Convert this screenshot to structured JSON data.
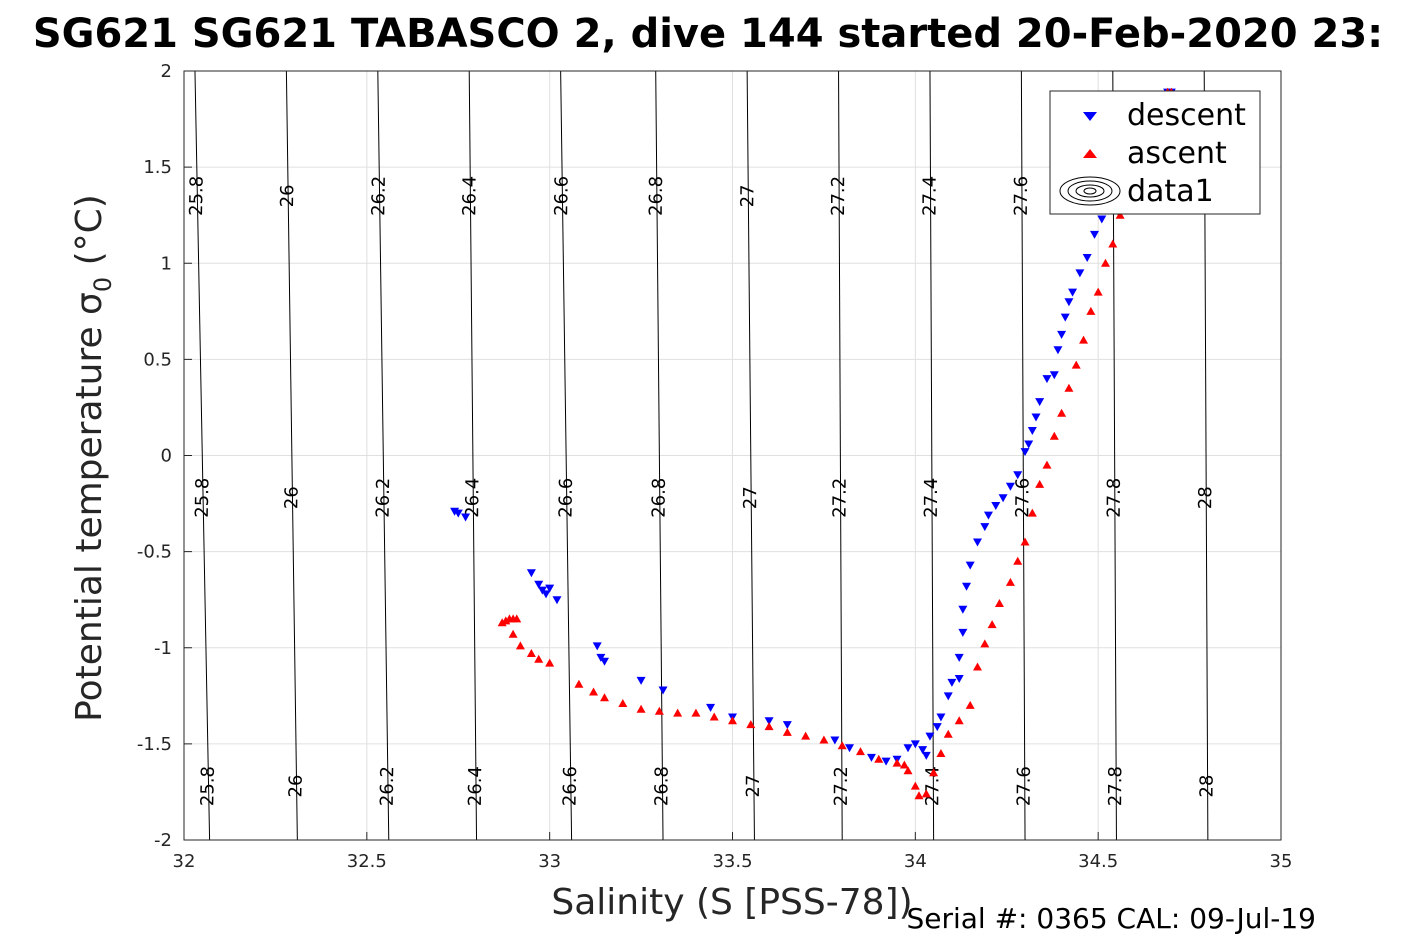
{
  "chart_data": {
    "type": "scatter",
    "title": "SG621 SG621 TABASCO 2, dive 144 started 20-Feb-2020 23:",
    "xlabel": "Salinity (S [PSS-78])",
    "ylabel_main": "Potential temperature σ",
    "ylabel_sub": "0",
    "ylabel_unit": " (°C)",
    "xlim": [
      32,
      35
    ],
    "ylim": [
      -2,
      2
    ],
    "xticks": [
      "32",
      "32.5",
      "33",
      "33.5",
      "34",
      "34.5",
      "35"
    ],
    "yticks": [
      "-2",
      "-1.5",
      "-1",
      "-0.5",
      "0",
      "0.5",
      "1",
      "1.5",
      "2"
    ],
    "grid": true,
    "legend": {
      "position": "top-right",
      "entries": [
        "descent",
        "ascent",
        "data1"
      ]
    },
    "footer": "Serial #: 0365  CAL: 09-Jul-19",
    "colors": {
      "descent": "#0000ff",
      "ascent": "#ff0000",
      "contour": "#000000",
      "grid": "#e0e0e0"
    },
    "contours": [
      {
        "label": "25.8",
        "x_top": 32.03,
        "x_bottom": 32.07
      },
      {
        "label": "26",
        "x_top": 32.28,
        "x_bottom": 32.31
      },
      {
        "label": "26.2",
        "x_top": 32.53,
        "x_bottom": 32.56
      },
      {
        "label": "26.4",
        "x_top": 32.78,
        "x_bottom": 32.8
      },
      {
        "label": "26.6",
        "x_top": 33.03,
        "x_bottom": 33.06
      },
      {
        "label": "26.8",
        "x_top": 33.29,
        "x_bottom": 33.31
      },
      {
        "label": "27",
        "x_top": 33.54,
        "x_bottom": 33.56
      },
      {
        "label": "27.2",
        "x_top": 33.79,
        "x_bottom": 33.8
      },
      {
        "label": "27.4",
        "x_top": 34.04,
        "x_bottom": 34.05
      },
      {
        "label": "27.6",
        "x_top": 34.29,
        "x_bottom": 34.3
      },
      {
        "label": "27.8",
        "x_top": 34.54,
        "x_bottom": 34.55
      },
      {
        "label": "28",
        "x_top": 34.79,
        "x_bottom": 34.8
      }
    ],
    "series": [
      {
        "name": "descent",
        "marker": "triangle-down",
        "points": [
          [
            32.74,
            -0.29
          ],
          [
            32.75,
            -0.3
          ],
          [
            32.77,
            -0.32
          ],
          [
            32.95,
            -0.61
          ],
          [
            32.97,
            -0.67
          ],
          [
            32.98,
            -0.7
          ],
          [
            32.99,
            -0.72
          ],
          [
            33.0,
            -0.69
          ],
          [
            33.02,
            -0.75
          ],
          [
            33.13,
            -0.99
          ],
          [
            33.14,
            -1.05
          ],
          [
            33.15,
            -1.07
          ],
          [
            33.25,
            -1.17
          ],
          [
            33.31,
            -1.22
          ],
          [
            33.44,
            -1.31
          ],
          [
            33.5,
            -1.36
          ],
          [
            33.6,
            -1.38
          ],
          [
            33.65,
            -1.4
          ],
          [
            33.78,
            -1.48
          ],
          [
            33.82,
            -1.52
          ],
          [
            33.88,
            -1.57
          ],
          [
            33.92,
            -1.59
          ],
          [
            33.95,
            -1.58
          ],
          [
            33.98,
            -1.52
          ],
          [
            34.0,
            -1.5
          ],
          [
            34.02,
            -1.53
          ],
          [
            34.03,
            -1.56
          ],
          [
            34.04,
            -1.46
          ],
          [
            34.06,
            -1.41
          ],
          [
            34.07,
            -1.36
          ],
          [
            34.09,
            -1.25
          ],
          [
            34.1,
            -1.18
          ],
          [
            34.12,
            -1.16
          ],
          [
            34.12,
            -1.05
          ],
          [
            34.13,
            -0.92
          ],
          [
            34.13,
            -0.8
          ],
          [
            34.14,
            -0.68
          ],
          [
            34.15,
            -0.57
          ],
          [
            34.17,
            -0.45
          ],
          [
            34.19,
            -0.37
          ],
          [
            34.2,
            -0.31
          ],
          [
            34.22,
            -0.26
          ],
          [
            34.24,
            -0.22
          ],
          [
            34.26,
            -0.16
          ],
          [
            34.28,
            -0.1
          ],
          [
            34.3,
            0.02
          ],
          [
            34.31,
            0.06
          ],
          [
            34.32,
            0.13
          ],
          [
            34.33,
            0.2
          ],
          [
            34.34,
            0.28
          ],
          [
            34.36,
            0.4
          ],
          [
            34.38,
            0.42
          ],
          [
            34.39,
            0.55
          ],
          [
            34.4,
            0.63
          ],
          [
            34.41,
            0.72
          ],
          [
            34.42,
            0.8
          ],
          [
            34.43,
            0.85
          ],
          [
            34.45,
            0.95
          ],
          [
            34.47,
            1.03
          ],
          [
            34.49,
            1.15
          ],
          [
            34.51,
            1.23
          ],
          [
            34.53,
            1.3
          ],
          [
            34.55,
            1.35
          ],
          [
            34.58,
            1.45
          ],
          [
            34.62,
            1.6
          ],
          [
            34.65,
            1.75
          ],
          [
            34.68,
            1.88
          ],
          [
            34.69,
            1.89
          ],
          [
            34.7,
            1.89
          ]
        ]
      },
      {
        "name": "ascent",
        "marker": "triangle-up",
        "points": [
          [
            32.87,
            -0.87
          ],
          [
            32.88,
            -0.86
          ],
          [
            32.89,
            -0.85
          ],
          [
            32.9,
            -0.85
          ],
          [
            32.91,
            -0.85
          ],
          [
            32.9,
            -0.93
          ],
          [
            32.92,
            -0.99
          ],
          [
            32.95,
            -1.03
          ],
          [
            32.97,
            -1.06
          ],
          [
            33.0,
            -1.08
          ],
          [
            33.08,
            -1.19
          ],
          [
            33.12,
            -1.23
          ],
          [
            33.15,
            -1.26
          ],
          [
            33.2,
            -1.29
          ],
          [
            33.25,
            -1.32
          ],
          [
            33.3,
            -1.33
          ],
          [
            33.35,
            -1.34
          ],
          [
            33.4,
            -1.34
          ],
          [
            33.45,
            -1.36
          ],
          [
            33.5,
            -1.38
          ],
          [
            33.55,
            -1.4
          ],
          [
            33.6,
            -1.41
          ],
          [
            33.65,
            -1.44
          ],
          [
            33.7,
            -1.46
          ],
          [
            33.75,
            -1.48
          ],
          [
            33.8,
            -1.51
          ],
          [
            33.85,
            -1.54
          ],
          [
            33.9,
            -1.58
          ],
          [
            33.95,
            -1.6
          ],
          [
            33.97,
            -1.61
          ],
          [
            33.98,
            -1.64
          ],
          [
            34.0,
            -1.72
          ],
          [
            34.01,
            -1.77
          ],
          [
            34.03,
            -1.76
          ],
          [
            34.05,
            -1.65
          ],
          [
            34.07,
            -1.55
          ],
          [
            34.09,
            -1.45
          ],
          [
            34.12,
            -1.38
          ],
          [
            34.15,
            -1.3
          ],
          [
            34.17,
            -1.1
          ],
          [
            34.19,
            -0.98
          ],
          [
            34.21,
            -0.88
          ],
          [
            34.23,
            -0.77
          ],
          [
            34.26,
            -0.66
          ],
          [
            34.28,
            -0.55
          ],
          [
            34.3,
            -0.45
          ],
          [
            34.32,
            -0.3
          ],
          [
            34.34,
            -0.15
          ],
          [
            34.36,
            -0.05
          ],
          [
            34.38,
            0.1
          ],
          [
            34.4,
            0.22
          ],
          [
            34.42,
            0.35
          ],
          [
            34.44,
            0.47
          ],
          [
            34.46,
            0.6
          ],
          [
            34.48,
            0.75
          ],
          [
            34.5,
            0.85
          ],
          [
            34.52,
            1.0
          ],
          [
            34.54,
            1.1
          ],
          [
            34.56,
            1.25
          ],
          [
            34.58,
            1.4
          ],
          [
            34.62,
            1.6
          ],
          [
            34.66,
            1.75
          ],
          [
            34.69,
            1.89
          ],
          [
            34.7,
            1.89
          ]
        ]
      }
    ]
  }
}
